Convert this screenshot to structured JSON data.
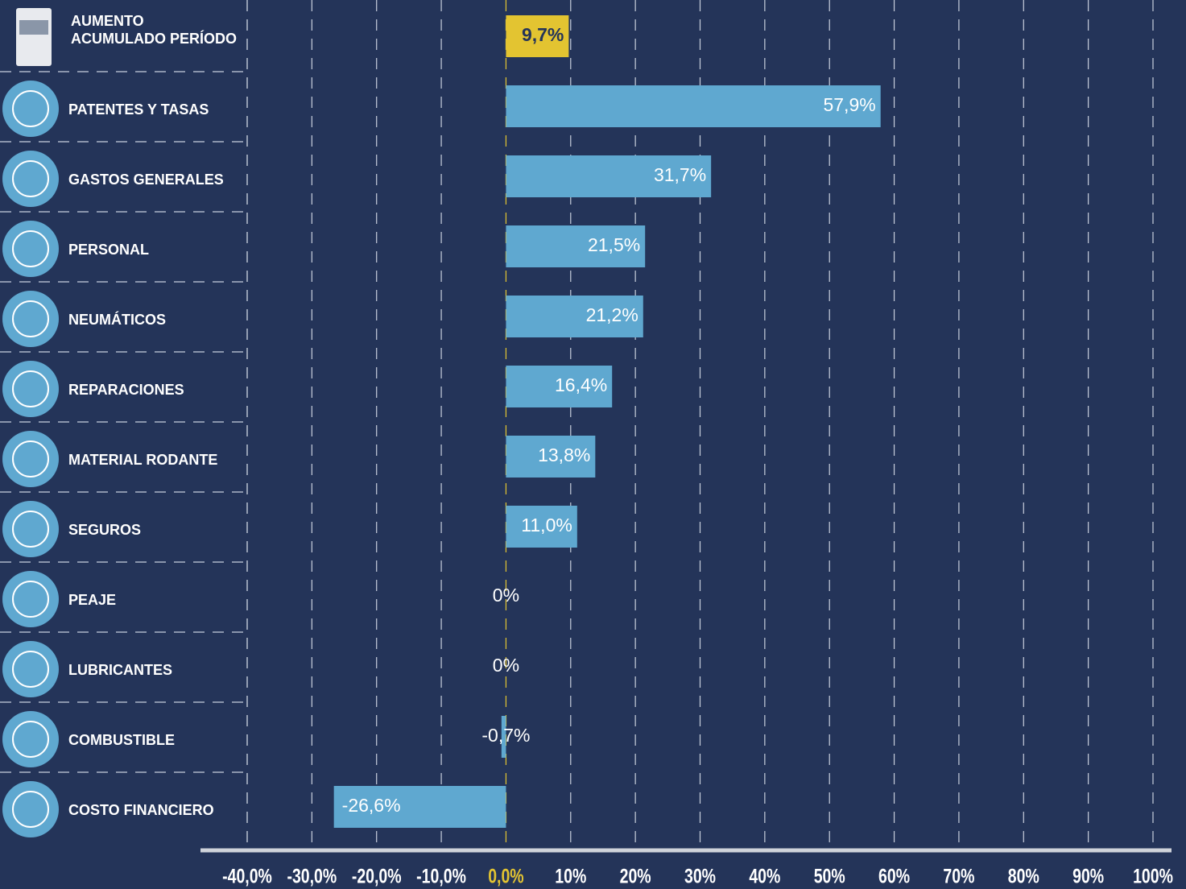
{
  "chart_data": {
    "type": "bar",
    "orientation": "horizontal",
    "categories": [
      "AUMENTO ACUMULADO PERÍODO",
      "PATENTES Y TASAS",
      "GASTOS GENERALES",
      "PERSONAL",
      "NEUMÁTICOS",
      "REPARACIONES",
      "MATERIAL RODANTE",
      "SEGUROS",
      "PEAJE",
      "LUBRICANTES",
      "COMBUSTIBLE",
      "COSTO FINANCIERO"
    ],
    "values": [
      9.7,
      57.9,
      31.7,
      21.5,
      21.2,
      16.4,
      13.8,
      11.0,
      0,
      0,
      -0.7,
      -26.6
    ],
    "value_labels": [
      "9,7%",
      "57,9%",
      "31,7%",
      "21,5%",
      "21,2%",
      "16,4%",
      "13,8%",
      "11,0%",
      "0%",
      "0%",
      "-0,7%",
      "-26,6%"
    ],
    "colors": [
      "#e3c431",
      "#5fa8d0",
      "#5fa8d0",
      "#5fa8d0",
      "#5fa8d0",
      "#5fa8d0",
      "#5fa8d0",
      "#5fa8d0",
      "#5fa8d0",
      "#5fa8d0",
      "#5fa8d0",
      "#5fa8d0"
    ],
    "xlim": [
      -40,
      100
    ],
    "xticks": [
      {
        "value": -40,
        "label": "-40,0%"
      },
      {
        "value": -30,
        "label": "-30,0%"
      },
      {
        "value": -20,
        "label": "-20,0%"
      },
      {
        "value": -10,
        "label": "-10,0%"
      },
      {
        "value": 0,
        "label": "0,0%"
      },
      {
        "value": 10,
        "label": "10%"
      },
      {
        "value": 20,
        "label": "20%"
      },
      {
        "value": 30,
        "label": "30%"
      },
      {
        "value": 40,
        "label": "40%"
      },
      {
        "value": 50,
        "label": "50%"
      },
      {
        "value": 60,
        "label": "60%"
      },
      {
        "value": 70,
        "label": "70%"
      },
      {
        "value": 80,
        "label": "80%"
      },
      {
        "value": 90,
        "label": "90%"
      },
      {
        "value": 100,
        "label": "100%"
      }
    ],
    "grid": true
  }
}
